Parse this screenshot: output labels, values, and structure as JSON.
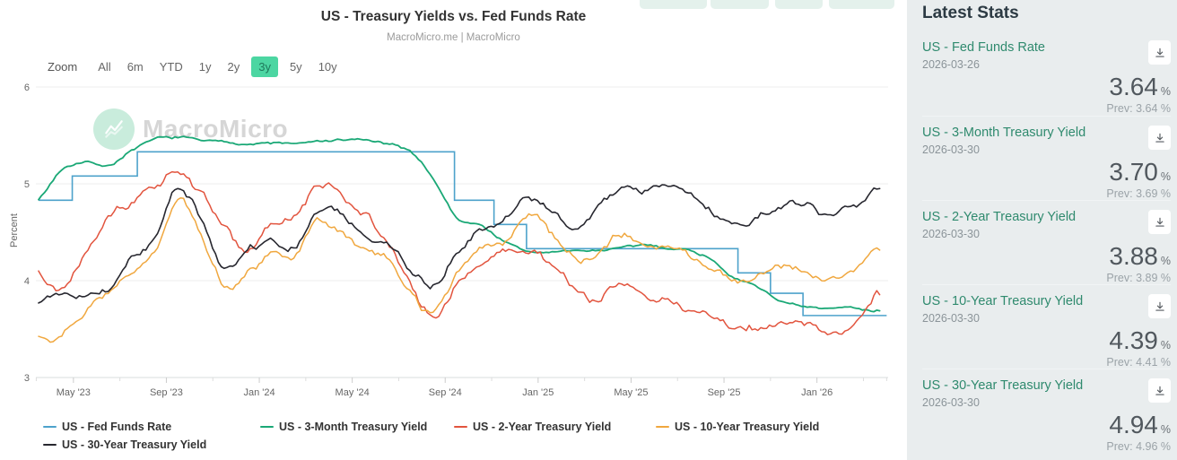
{
  "toolbar": {
    "zoom_label": "Zoom",
    "ranges": [
      "All",
      "6m",
      "YTD",
      "1y",
      "2y",
      "3y",
      "5y",
      "10y"
    ],
    "selected": "3y"
  },
  "watermark": {
    "text": "MacroMicro"
  },
  "chart_data": {
    "type": "line",
    "title": "US - Treasury Yields vs. Fed Funds Rate",
    "subtitle": "MacroMicro.me | MacroMicro",
    "xlabel": "",
    "ylabel": "Percent",
    "ylim": [
      3,
      6
    ],
    "yticks": [
      6,
      5,
      4,
      3
    ],
    "grid": true,
    "legend_position": "bottom",
    "x_unit": "months since 2023-03-30",
    "xticks": [
      {
        "t": 1.5,
        "label": "May '23"
      },
      {
        "t": 5.5,
        "label": "Sep '23"
      },
      {
        "t": 9.5,
        "label": "Jan '24"
      },
      {
        "t": 13.5,
        "label": "May '24"
      },
      {
        "t": 17.5,
        "label": "Sep '24"
      },
      {
        "t": 21.5,
        "label": "Jan '25"
      },
      {
        "t": 25.5,
        "label": "May '25"
      },
      {
        "t": 29.5,
        "label": "Sep '25"
      },
      {
        "t": 33.5,
        "label": "Jan '26"
      }
    ],
    "minor_ticks": [
      -0.1,
      3.5,
      7.5,
      11.5,
      15.5,
      19.5,
      23.5,
      27.5,
      31.5,
      35.5,
      36.5
    ],
    "series": [
      {
        "name": "US - Fed Funds Rate",
        "color": "#4da2cb",
        "style": "step",
        "points": [
          [
            0,
            4.83
          ],
          [
            1.45,
            5.08
          ],
          [
            4.25,
            5.33
          ],
          [
            17.9,
            4.83
          ],
          [
            19.6,
            4.58
          ],
          [
            21.0,
            4.33
          ],
          [
            30.1,
            4.08
          ],
          [
            31.5,
            3.87
          ],
          [
            32.9,
            3.64
          ],
          [
            36.5,
            3.64
          ]
        ]
      },
      {
        "name": "US - 3-Month Treasury Yield",
        "color": "#1aa876",
        "style": "noisy",
        "monthly": [
          4.85,
          5.15,
          5.24,
          5.2,
          5.35,
          5.45,
          5.47,
          5.45,
          5.43,
          5.42,
          5.42,
          5.42,
          5.43,
          5.45,
          5.45,
          5.4,
          5.32,
          5.05,
          4.65,
          4.57,
          4.42,
          4.3,
          4.3,
          4.3,
          4.31,
          4.34,
          4.35,
          4.34,
          4.32,
          4.22,
          4.03,
          3.93,
          3.79,
          3.72,
          3.7,
          3.71,
          3.7
        ]
      },
      {
        "name": "US - 2-Year Treasury Yield",
        "color": "#e2543e",
        "style": "noisy",
        "monthly": [
          4.1,
          3.95,
          4.35,
          4.75,
          4.87,
          5.0,
          5.12,
          4.88,
          4.55,
          4.3,
          4.55,
          4.62,
          4.95,
          4.88,
          4.72,
          4.4,
          3.92,
          3.62,
          3.95,
          4.2,
          4.27,
          4.3,
          4.18,
          3.95,
          3.78,
          3.95,
          3.9,
          3.85,
          3.7,
          3.6,
          3.5,
          3.52,
          3.55,
          3.5,
          3.45,
          3.52,
          3.88
        ]
      },
      {
        "name": "US - 10-Year Treasury Yield",
        "color": "#f0a73e",
        "style": "noisy",
        "monthly": [
          3.45,
          3.42,
          3.68,
          3.88,
          4.1,
          4.3,
          4.82,
          4.45,
          3.95,
          4.08,
          4.25,
          4.22,
          4.6,
          4.5,
          4.3,
          4.22,
          3.9,
          3.68,
          4.05,
          4.35,
          4.4,
          4.7,
          4.5,
          4.25,
          4.25,
          4.45,
          4.4,
          4.37,
          4.25,
          4.13,
          4.0,
          4.08,
          4.15,
          4.1,
          4.05,
          4.12,
          4.39
        ]
      },
      {
        "name": "US - 30-Year Treasury Yield",
        "color": "#27272f",
        "style": "noisy",
        "monthly": [
          3.75,
          3.85,
          3.87,
          3.92,
          4.22,
          4.42,
          4.92,
          4.62,
          4.12,
          4.27,
          4.42,
          4.38,
          4.72,
          4.65,
          4.47,
          4.4,
          4.15,
          3.97,
          4.35,
          4.55,
          4.6,
          4.85,
          4.7,
          4.55,
          4.72,
          4.92,
          4.87,
          4.92,
          4.87,
          4.7,
          4.6,
          4.67,
          4.75,
          4.75,
          4.62,
          4.75,
          4.94
        ]
      }
    ]
  },
  "sidebar": {
    "title": "Latest Stats",
    "stats": [
      {
        "name": "US - Fed Funds Rate",
        "date": "2026-03-26",
        "value": "3.64",
        "unit": "%",
        "prev": "Prev: 3.64 %"
      },
      {
        "name": "US - 3-Month Treasury Yield",
        "date": "2026-03-30",
        "value": "3.70",
        "unit": "%",
        "prev": "Prev: 3.69 %"
      },
      {
        "name": "US - 2-Year Treasury Yield",
        "date": "2026-03-30",
        "value": "3.88",
        "unit": "%",
        "prev": "Prev: 3.89 %"
      },
      {
        "name": "US - 10-Year Treasury Yield",
        "date": "2026-03-30",
        "value": "4.39",
        "unit": "%",
        "prev": "Prev: 4.41 %"
      },
      {
        "name": "US - 30-Year Treasury Yield",
        "date": "2026-03-30",
        "value": "4.94",
        "unit": "%",
        "prev": "Prev: 4.96 %"
      }
    ]
  },
  "colors": {
    "accent_green": "#1aa876",
    "selected_range_bg": "#4cd6a2",
    "sidebar_bg": "#e9edee",
    "grid": "#ededed"
  }
}
